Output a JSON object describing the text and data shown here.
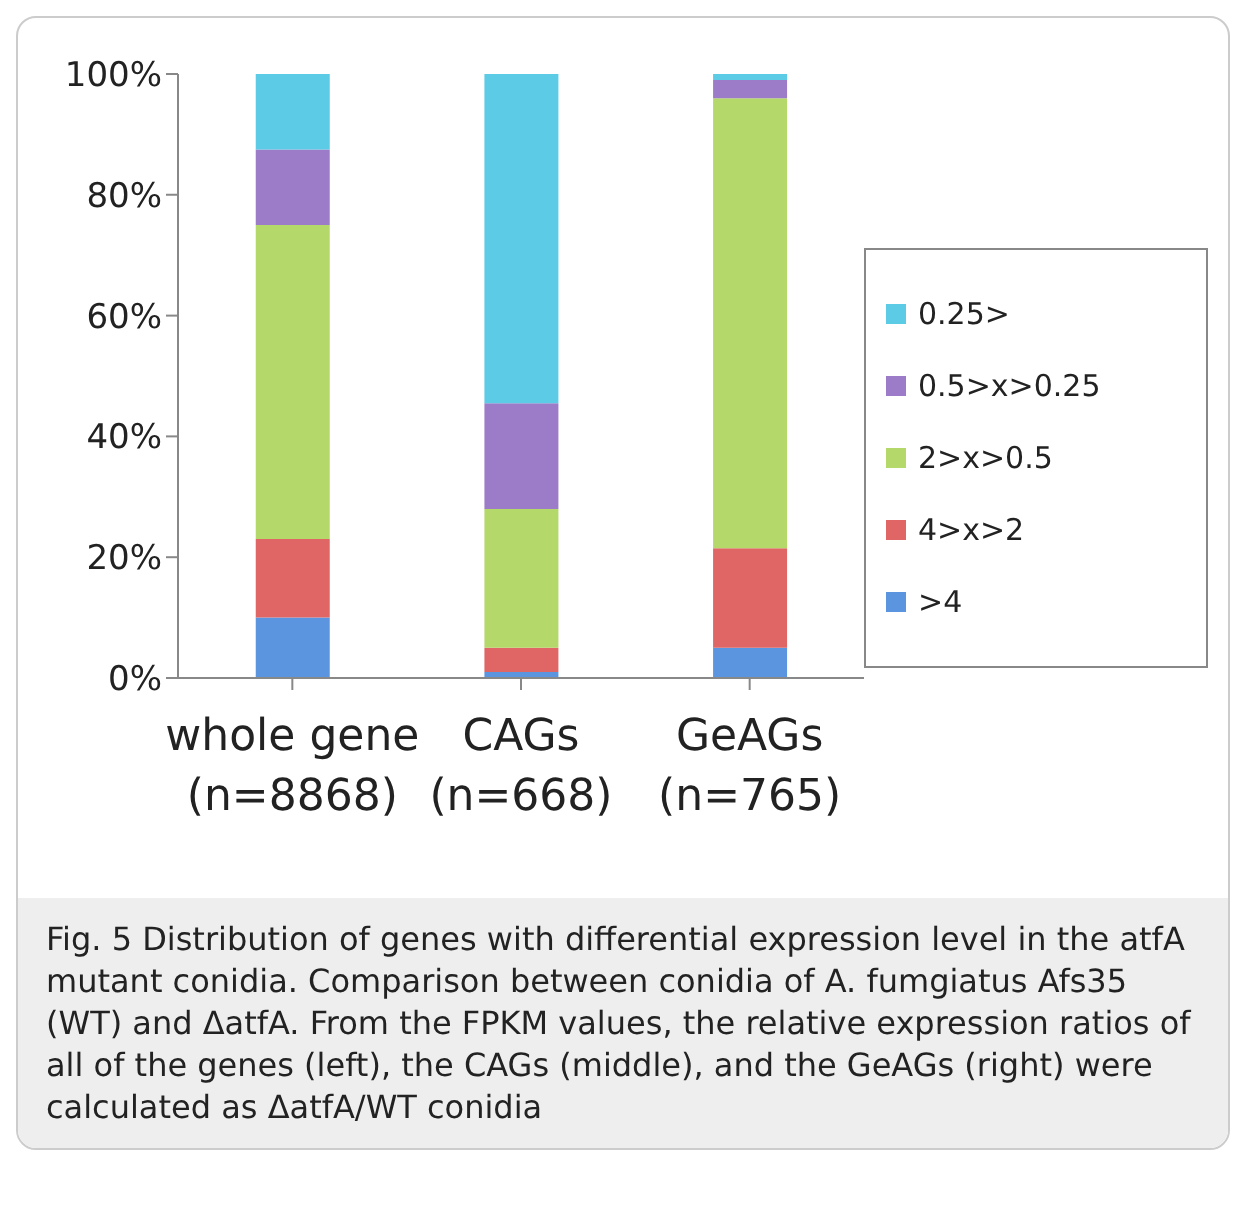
{
  "chart_data": {
    "type": "bar",
    "stacked": true,
    "categories": [
      "whole gene\n(n=8868)",
      "CAGs\n(n=668)",
      "GeAGs\n(n=765)"
    ],
    "series": [
      {
        "name": ">4",
        "color": "#5b95e0",
        "values": [
          10,
          1,
          5
        ]
      },
      {
        "name": "4>x>2",
        "color": "#e06666",
        "values": [
          13,
          4,
          16.5
        ]
      },
      {
        "name": "2>x>0.5",
        "color": "#b5d86a",
        "values": [
          52,
          23,
          74.5
        ]
      },
      {
        "name": "0.5>x>0.25",
        "color": "#9c7cc8",
        "values": [
          12.5,
          17.5,
          3
        ]
      },
      {
        "name": "0.25>",
        "color": "#5ccbe6",
        "values": [
          12.5,
          54.5,
          1
        ]
      }
    ],
    "ylim": [
      0,
      100
    ],
    "yticks": [
      {
        "value": 0,
        "label": "0%"
      },
      {
        "value": 20,
        "label": "20%"
      },
      {
        "value": 40,
        "label": "40%"
      },
      {
        "value": 60,
        "label": "60%"
      },
      {
        "value": 80,
        "label": "80%"
      },
      {
        "value": 100,
        "label": "100%"
      }
    ],
    "legend": "right",
    "annotations": [
      "Fig. 5 Distribution of genes with differential expression level in the atfA mutant conidia. Comparison between conidia of A. fumgiatus Afs35 (WT) and ΔatfA. From the FPKM values, the relative expression ratios of all of the genes (left), the CAGs (middle), and the GeAGs (right) were calculated as ΔatfA/WT conidia"
    ]
  }
}
